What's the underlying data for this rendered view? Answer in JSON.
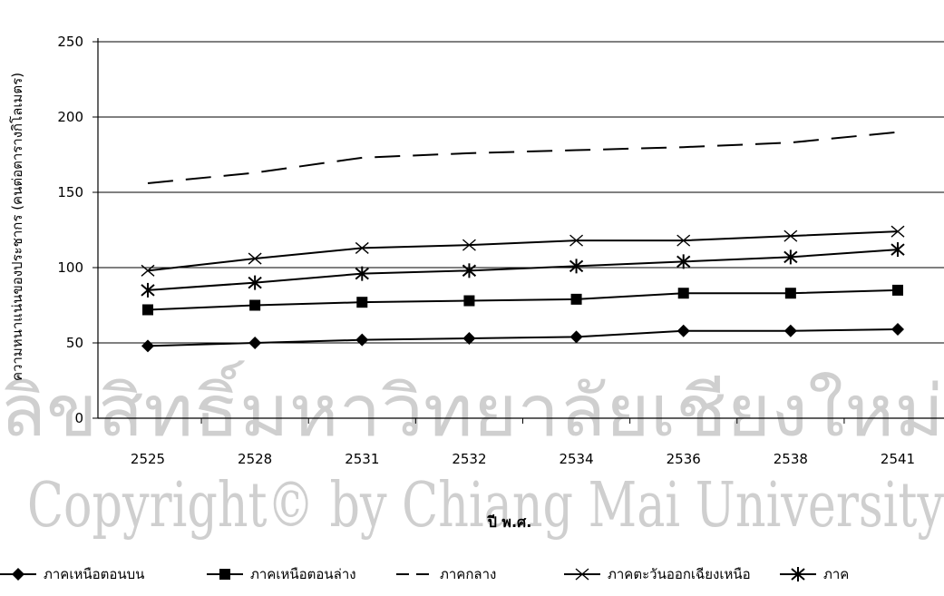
{
  "watermark": {
    "line1": "ลิขสิทธิ์มหาวิทยาลัยเชียงใหม่",
    "line2": "Copyright© by Chiang Mai University",
    "color": "#cfcfcf"
  },
  "chart_data": {
    "type": "line",
    "categories": [
      "2525",
      "2528",
      "2531",
      "2532",
      "2534",
      "2536",
      "2538",
      "2541"
    ],
    "ylim": [
      0,
      250
    ],
    "yticks": [
      0,
      50,
      100,
      150,
      200,
      250
    ],
    "grid": true,
    "xlabel": "ปี พ.ศ.",
    "ylabel": "ความหนาแน่นของประชากร (คนต่อตารางกิโลเมตร)",
    "legend_position": "bottom",
    "series": [
      {
        "name": "ภาคเหนือตอนบน",
        "marker": "diamond",
        "dash": "solid",
        "values": [
          48,
          50,
          52,
          53,
          54,
          58,
          58,
          59
        ]
      },
      {
        "name": "ภาคเหนือตอนล่าง",
        "marker": "square",
        "dash": "solid",
        "values": [
          72,
          75,
          77,
          78,
          79,
          83,
          83,
          85
        ]
      },
      {
        "name": "ภาคกลาง",
        "marker": "none",
        "dash": "dashed",
        "values": [
          156,
          163,
          173,
          176,
          178,
          180,
          183,
          190
        ]
      },
      {
        "name": "ภาคตะวันออกเฉียงเหนือ",
        "marker": "x",
        "dash": "solid",
        "values": [
          98,
          106,
          113,
          115,
          118,
          118,
          121,
          124
        ]
      },
      {
        "name": "ภาค",
        "marker": "asterisk",
        "dash": "solid",
        "values": [
          85,
          90,
          96,
          98,
          101,
          104,
          107,
          112
        ]
      }
    ]
  }
}
